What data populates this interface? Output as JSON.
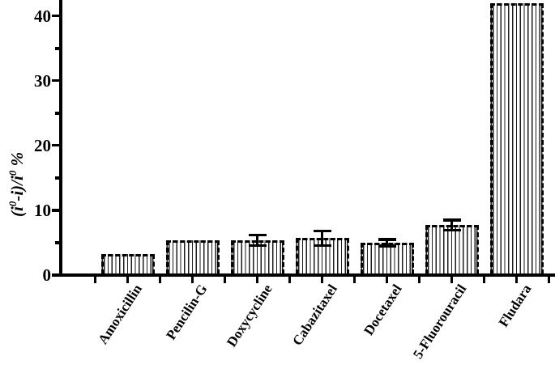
{
  "figure": {
    "background": "#ffffff",
    "axis_color": "#000000",
    "bar_fill_style": "vertical-hatch",
    "bar_outline_style": "dashed"
  },
  "chart_data": {
    "type": "bar",
    "title": "",
    "xlabel": "",
    "ylabel": "(i0-i)/i0 %",
    "ylabel_parts": {
      "p1": "(i",
      "sup1": "0",
      "p2": "-i)/i",
      "sup2": "0",
      "p3": " %"
    },
    "categories": [
      "Amoxicillin",
      "Pencilin-G",
      "Doxycycline",
      "Cabazitaxel",
      "Docetaxel",
      "5-Fluorouracil",
      "Fludara"
    ],
    "values": [
      3.2,
      5.4,
      5.4,
      5.7,
      5.0,
      7.7,
      41.9
    ],
    "errors": [
      null,
      null,
      0.8,
      1.1,
      0.5,
      0.8,
      null
    ],
    "yticks": [
      0,
      10,
      20,
      30,
      40
    ],
    "yminor_step": 5,
    "ylim": [
      0,
      42.5
    ],
    "grid": false,
    "legend": null,
    "colors": {
      "bar_hatch": "#1d1d1d",
      "outline": "#000000",
      "text": "#000000"
    }
  }
}
